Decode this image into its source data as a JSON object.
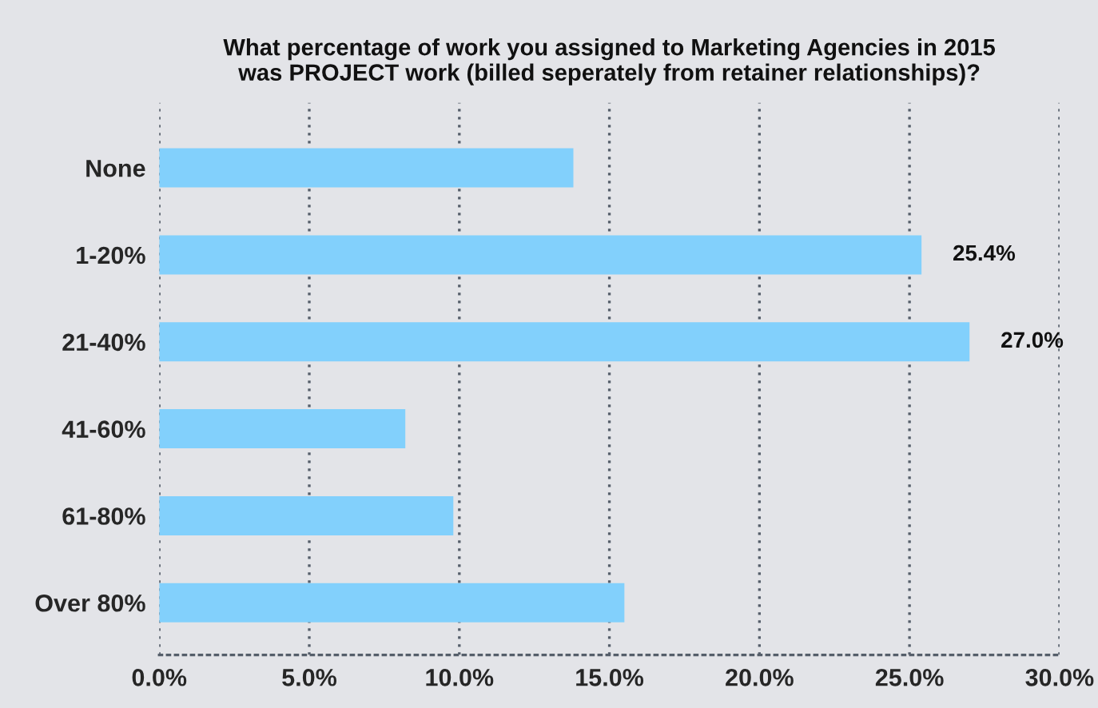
{
  "chart_data": {
    "type": "bar",
    "orientation": "horizontal",
    "title": "What percentage of work you assigned to Marketing Agencies in 2015\nwas PROJECT work (billed seperately from retainer relationships)?",
    "categories": [
      "None",
      "1-20%",
      "21-40%",
      "41-60%",
      "61-80%",
      "Over 80%"
    ],
    "values": [
      13.8,
      25.4,
      27.0,
      8.2,
      9.8,
      15.5
    ],
    "value_labels": [
      null,
      "25.4%",
      "27.0%",
      null,
      null,
      null
    ],
    "color": "#82d0fc",
    "xlim": [
      0,
      30
    ],
    "xticks": [
      {
        "value": 0,
        "label": "0.0%"
      },
      {
        "value": 5,
        "label": "5.0%"
      },
      {
        "value": 10,
        "label": "10.0%"
      },
      {
        "value": 15,
        "label": "15.0%"
      },
      {
        "value": 20,
        "label": "20.0%"
      },
      {
        "value": 25,
        "label": "25.0%"
      },
      {
        "value": 30,
        "label": "30.0%"
      }
    ],
    "grid": "x"
  }
}
